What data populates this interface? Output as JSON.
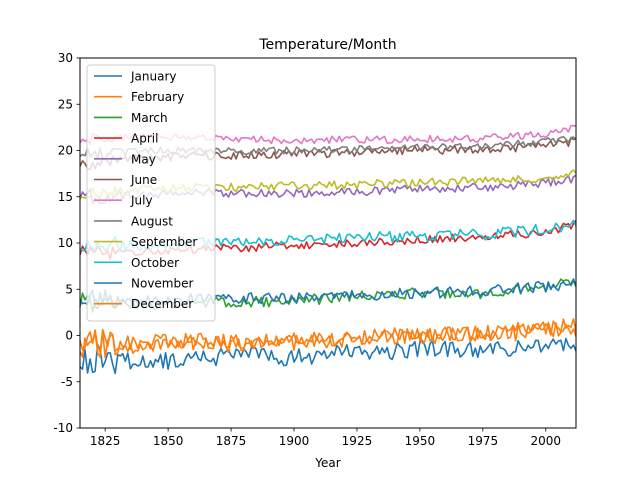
{
  "chart_data": {
    "type": "line",
    "title": "Temperature/Month",
    "xlabel": "Year",
    "ylabel": "",
    "xlim": [
      1815,
      2012
    ],
    "ylim": [
      -10,
      30
    ],
    "xticks": [
      1825,
      1850,
      1875,
      1900,
      1925,
      1950,
      1975,
      2000
    ],
    "yticks": [
      -10,
      -5,
      0,
      5,
      10,
      15,
      20,
      25,
      30
    ],
    "grid": false,
    "legend_position": "top-left",
    "series": [
      {
        "name": "January",
        "color": "#1f77b4",
        "x": [
          1815,
          1840,
          1860,
          1880,
          1900,
          1925,
          1950,
          1975,
          2000,
          2012
        ],
        "y": [
          -2.5,
          -2.8,
          -2.5,
          -2.0,
          -2.5,
          -1.8,
          -1.5,
          -1.6,
          -1.0,
          -1.2
        ]
      },
      {
        "name": "February",
        "color": "#ff7f0e",
        "x": [
          1815,
          1840,
          1860,
          1880,
          1900,
          1925,
          1950,
          1975,
          2000,
          2012
        ],
        "y": [
          -1.0,
          -1.2,
          -0.8,
          -1.2,
          -0.7,
          -0.4,
          0.0,
          0.0,
          0.6,
          0.5
        ]
      },
      {
        "name": "March",
        "color": "#2ca02c",
        "x": [
          1815,
          1840,
          1860,
          1880,
          1900,
          1925,
          1950,
          1975,
          2000,
          2012
        ],
        "y": [
          3.5,
          3.3,
          3.6,
          3.6,
          3.8,
          4.2,
          4.6,
          4.6,
          5.3,
          5.8
        ]
      },
      {
        "name": "April",
        "color": "#d62728",
        "x": [
          1815,
          1840,
          1860,
          1880,
          1900,
          1925,
          1950,
          1975,
          2000,
          2012
        ],
        "y": [
          9.0,
          9.0,
          9.3,
          9.5,
          9.7,
          10.0,
          10.4,
          10.6,
          11.2,
          12.0
        ]
      },
      {
        "name": "May",
        "color": "#9467bd",
        "x": [
          1815,
          1840,
          1860,
          1880,
          1900,
          1925,
          1950,
          1975,
          2000,
          2012
        ],
        "y": [
          15.0,
          15.2,
          15.4,
          15.4,
          15.4,
          15.5,
          15.9,
          16.0,
          16.5,
          17.0
        ]
      },
      {
        "name": "June",
        "color": "#8c564b",
        "x": [
          1815,
          1840,
          1860,
          1880,
          1900,
          1925,
          1950,
          1975,
          2000,
          2012
        ],
        "y": [
          18.5,
          19.2,
          19.4,
          19.5,
          19.6,
          19.8,
          20.1,
          20.0,
          20.6,
          21.0
        ]
      },
      {
        "name": "July",
        "color": "#e377c2",
        "x": [
          1815,
          1840,
          1860,
          1880,
          1900,
          1925,
          1950,
          1975,
          2000,
          2012
        ],
        "y": [
          21.0,
          21.5,
          21.4,
          21.2,
          21.1,
          21.2,
          21.2,
          21.3,
          21.8,
          22.5
        ]
      },
      {
        "name": "August",
        "color": "#7f7f7f",
        "x": [
          1815,
          1840,
          1860,
          1880,
          1900,
          1925,
          1950,
          1975,
          2000,
          2012
        ],
        "y": [
          19.5,
          20.0,
          20.0,
          19.9,
          20.0,
          20.1,
          20.4,
          20.4,
          21.0,
          21.2
        ]
      },
      {
        "name": "September",
        "color": "#bcbd22",
        "x": [
          1815,
          1840,
          1860,
          1880,
          1900,
          1925,
          1950,
          1975,
          2000,
          2012
        ],
        "y": [
          15.0,
          15.8,
          16.0,
          16.0,
          16.2,
          16.3,
          16.6,
          16.7,
          17.0,
          17.6
        ]
      },
      {
        "name": "October",
        "color": "#17becf",
        "x": [
          1815,
          1840,
          1860,
          1880,
          1900,
          1925,
          1950,
          1975,
          2000,
          2012
        ],
        "y": [
          9.5,
          9.8,
          10.0,
          10.1,
          10.3,
          10.5,
          10.8,
          10.9,
          11.5,
          12.0
        ]
      },
      {
        "name": "November",
        "color": "#1f77b4",
        "x": [
          1815,
          1840,
          1860,
          1880,
          1900,
          1925,
          1950,
          1975,
          2000,
          2012
        ],
        "y": [
          4.0,
          3.8,
          3.9,
          4.0,
          4.1,
          4.3,
          4.6,
          4.8,
          5.3,
          5.6
        ]
      },
      {
        "name": "December",
        "color": "#ff7f0e",
        "x": [
          1815,
          1840,
          1860,
          1880,
          1900,
          1925,
          1950,
          1975,
          2000,
          2012
        ],
        "y": [
          -0.5,
          -0.8,
          -0.6,
          -0.8,
          -0.5,
          -0.2,
          0.2,
          0.2,
          0.8,
          1.0
        ]
      }
    ]
  }
}
